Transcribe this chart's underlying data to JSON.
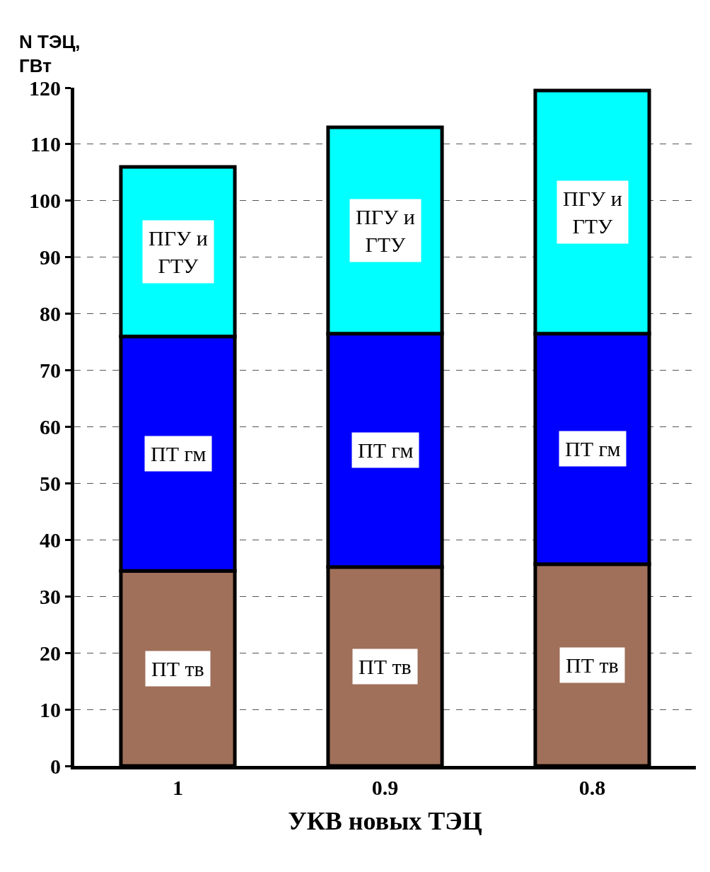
{
  "chart_data": {
    "type": "bar",
    "stacked": true,
    "xlabel": "УКВ новых ТЭЦ",
    "ylabel": "N ТЭЦ,\nГВт",
    "categories": [
      "1",
      "0.9",
      "0.8"
    ],
    "series": [
      {
        "name": "ПТ тв",
        "color": "#a0705a",
        "values": [
          34.5,
          35.2,
          35.7
        ]
      },
      {
        "name": "ПТ гм",
        "color": "#0000ff",
        "values": [
          41.5,
          41.3,
          40.8
        ]
      },
      {
        "name": "ПГУ и\nГТУ",
        "color": "#00ffff",
        "values": [
          30,
          36.5,
          43
        ]
      }
    ],
    "ylim": [
      0,
      120
    ],
    "yticks": [
      0,
      10,
      20,
      30,
      40,
      50,
      60,
      70,
      80,
      90,
      100,
      110,
      120
    ],
    "grid": "y",
    "legend": false
  }
}
